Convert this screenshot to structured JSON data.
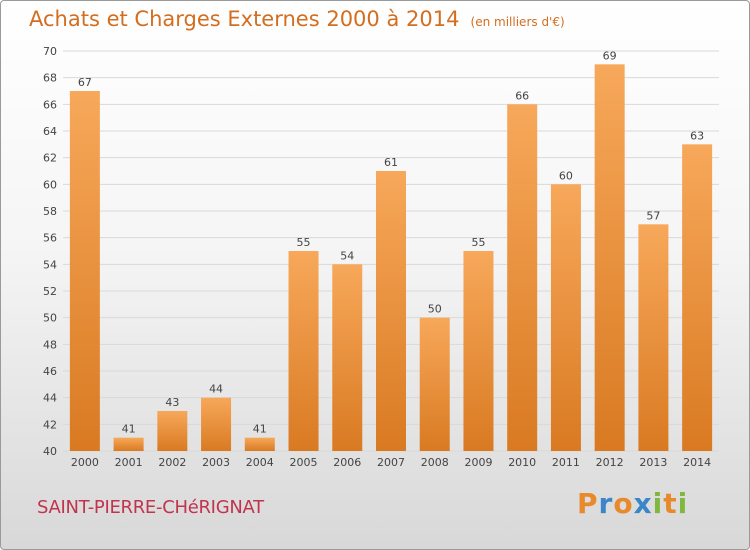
{
  "header": {
    "title": "Achats et Charges Externes 2000 à 2014",
    "unit": "(en milliers d'€)"
  },
  "footer": {
    "commune": "SAINT-PIERRE-CHéRIGNAT",
    "brand": "Proxiti",
    "brand_colors": [
      "#e8892b",
      "#3a86c8",
      "#e8892b",
      "#3a86c8",
      "#7fb83c",
      "#e8892b",
      "#7fb83c"
    ]
  },
  "colors": {
    "bar_light": "#f7a85a",
    "bar_dark": "#d97a22",
    "grid": "#d9d9d9",
    "axis_text": "#444444"
  },
  "chart_data": {
    "type": "bar",
    "title": "Achats et Charges Externes 2000 à 2014",
    "xlabel": "",
    "ylabel": "",
    "categories": [
      "2000",
      "2001",
      "2002",
      "2003",
      "2004",
      "2005",
      "2006",
      "2007",
      "2008",
      "2009",
      "2010",
      "2011",
      "2012",
      "2013",
      "2014"
    ],
    "values": [
      67,
      41,
      43,
      44,
      41,
      55,
      54,
      61,
      50,
      55,
      66,
      60,
      69,
      57,
      63
    ],
    "ylim": [
      40,
      70
    ],
    "yticks": [
      40,
      42,
      44,
      46,
      48,
      50,
      52,
      54,
      56,
      58,
      60,
      62,
      64,
      66,
      68,
      70
    ],
    "grid": true,
    "legend": "none"
  }
}
